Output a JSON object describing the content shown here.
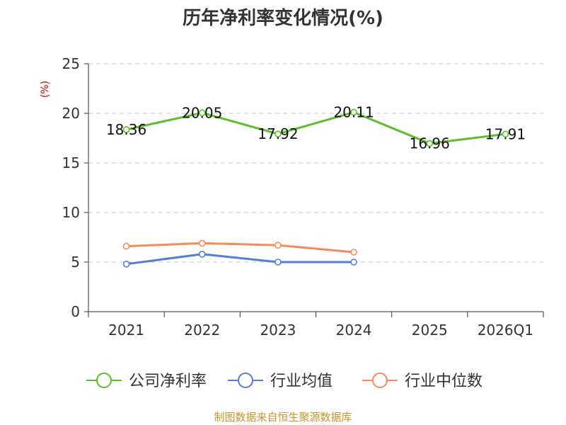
{
  "chart_data": {
    "type": "line",
    "title": "历年净利率变化情况(%)",
    "ylabel": "(%)",
    "xlabel": "",
    "categories": [
      "2021",
      "2022",
      "2023",
      "2024",
      "2025",
      "2026Q1"
    ],
    "ylim": [
      0,
      25
    ],
    "yticks": [
      "0",
      "5",
      "10",
      "15",
      "20",
      "25"
    ],
    "grid": true,
    "legend_position": "bottom",
    "series": [
      {
        "name": "公司净利率",
        "color": "#5cbf29",
        "values": [
          18.36,
          20.05,
          17.92,
          20.11,
          16.96,
          17.91
        ],
        "labels": [
          "18.36",
          "20.05",
          "17.92",
          "20.11",
          "16.96",
          "17.91"
        ]
      },
      {
        "name": "行业均值",
        "color": "#4f7fd9",
        "values": [
          4.8,
          5.8,
          5.0,
          5.0,
          null,
          null
        ],
        "labels": []
      },
      {
        "name": "行业中位数",
        "color": "#f58b5a",
        "values": [
          6.6,
          6.9,
          6.7,
          6.0,
          null,
          null
        ],
        "labels": []
      }
    ],
    "source": "制图数据来自恒生聚源数据库"
  }
}
